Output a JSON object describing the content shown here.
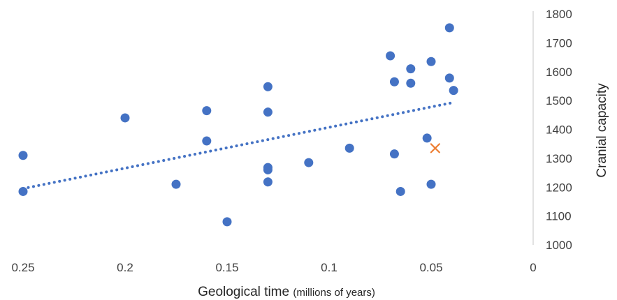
{
  "chart_data": {
    "type": "scatter",
    "xlabel": "Geological time",
    "xlabel_unit": "(millions of years)",
    "ylabel": "Cranial capacity",
    "x_reversed": true,
    "xlim": [
      0,
      0.25
    ],
    "ylim": [
      1000,
      1800
    ],
    "x_ticks": [
      "0.25",
      "0.2",
      "0.15",
      "0.1",
      "0.05",
      "0"
    ],
    "y_ticks": [
      "1000",
      "1100",
      "1200",
      "1300",
      "1400",
      "1500",
      "1600",
      "1700",
      "1800"
    ],
    "grid": false,
    "legend": "none",
    "colors": {
      "points": "#4472C4",
      "highlight": "#ED7D31",
      "trendline": "#4472C4",
      "axis": "#D9D9D9"
    },
    "series": [
      {
        "marker": "circle",
        "points": [
          {
            "x": 0.25,
            "y": 1310
          },
          {
            "x": 0.25,
            "y": 1185
          },
          {
            "x": 0.2,
            "y": 1440
          },
          {
            "x": 0.175,
            "y": 1210
          },
          {
            "x": 0.16,
            "y": 1465
          },
          {
            "x": 0.16,
            "y": 1360
          },
          {
            "x": 0.15,
            "y": 1080
          },
          {
            "x": 0.13,
            "y": 1548
          },
          {
            "x": 0.13,
            "y": 1460
          },
          {
            "x": 0.13,
            "y": 1268
          },
          {
            "x": 0.13,
            "y": 1260
          },
          {
            "x": 0.13,
            "y": 1218
          },
          {
            "x": 0.11,
            "y": 1285
          },
          {
            "x": 0.09,
            "y": 1335
          },
          {
            "x": 0.07,
            "y": 1655
          },
          {
            "x": 0.068,
            "y": 1565
          },
          {
            "x": 0.068,
            "y": 1315
          },
          {
            "x": 0.065,
            "y": 1185
          },
          {
            "x": 0.06,
            "y": 1610
          },
          {
            "x": 0.06,
            "y": 1560
          },
          {
            "x": 0.052,
            "y": 1370
          },
          {
            "x": 0.05,
            "y": 1635
          },
          {
            "x": 0.05,
            "y": 1210
          },
          {
            "x": 0.041,
            "y": 1752
          },
          {
            "x": 0.041,
            "y": 1578
          },
          {
            "x": 0.039,
            "y": 1535
          }
        ]
      },
      {
        "marker": "x",
        "points": [
          {
            "x": 0.048,
            "y": 1335
          }
        ]
      }
    ],
    "trendline": {
      "style": "dotted",
      "from": {
        "x": 0.25,
        "y": 1195
      },
      "to": {
        "x": 0.04,
        "y": 1492
      }
    }
  }
}
